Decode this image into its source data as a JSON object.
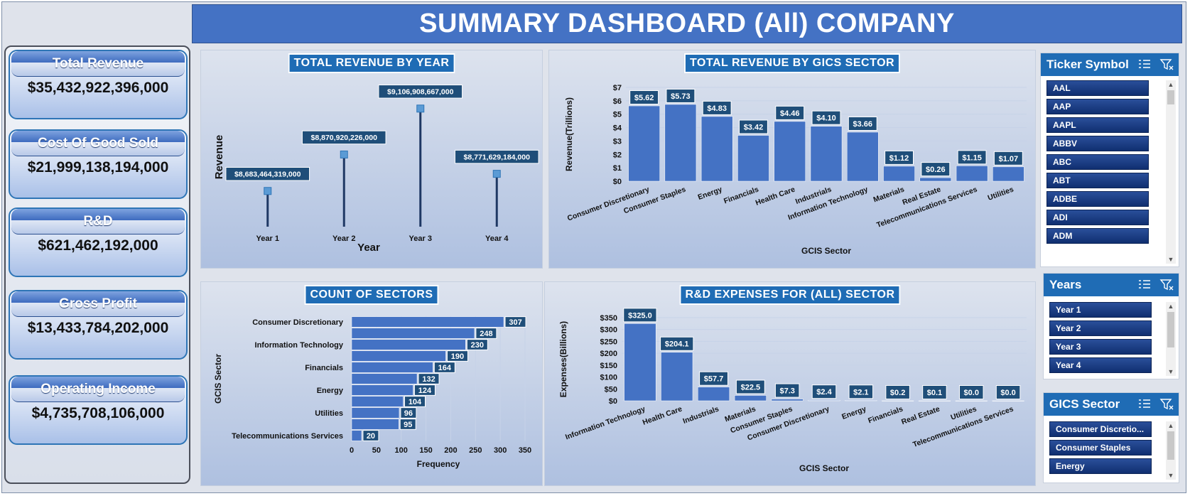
{
  "dashboard": {
    "title": "SUMMARY DASHBOARD (All) COMPANY"
  },
  "kpis": [
    {
      "label": "Total Revenue",
      "value": "$35,432,922,396,000"
    },
    {
      "label": "Cost Of Good Sold",
      "value": "$21,999,138,194,000"
    },
    {
      "label": "R&D",
      "value": "$621,462,192,000"
    },
    {
      "label": "Gross Profit",
      "value": "$13,433,784,202,000"
    },
    {
      "label": "Operating Income",
      "value": "$4,735,708,106,000"
    }
  ],
  "chart_data": [
    {
      "id": "revenue-by-year",
      "type": "line",
      "title": "TOTAL REVENUE BY YEAR",
      "xlabel": "Year",
      "ylabel": "Revenue",
      "categories": [
        "Year 1",
        "Year 2",
        "Year 3",
        "Year 4"
      ],
      "values": [
        8683464319000,
        8870920226000,
        9106908667000,
        8771629184000
      ],
      "data_labels": [
        "$8,683,464,319,000",
        "$8,870,920,226,000",
        "$9,106,908,667,000",
        "$8,771,629,184,000"
      ],
      "grid": false,
      "color": "#1f3864"
    },
    {
      "id": "revenue-by-sector",
      "type": "bar",
      "title": "TOTAL REVENUE BY GICS SECTOR",
      "xlabel": "GCIS Sector",
      "ylabel": "Revenue(Trillions)",
      "categories": [
        "Consumer Discretionary",
        "Consumer Staples",
        "Energy",
        "Financials",
        "Health Care",
        "Industrials",
        "Information Technology",
        "Materials",
        "Real Estate",
        "Telecommunications Services",
        "Utilities"
      ],
      "values": [
        5.62,
        5.73,
        4.83,
        3.42,
        4.46,
        4.1,
        3.66,
        1.12,
        0.26,
        1.15,
        1.07
      ],
      "data_labels": [
        "$5.62",
        "$5.73",
        "$4.83",
        "$3.42",
        "$4.46",
        "$4.10",
        "$3.66",
        "$1.12",
        "$0.26",
        "$1.15",
        "$1.07"
      ],
      "ylim": [
        0,
        7
      ],
      "yticks": [
        "$0",
        "$1",
        "$2",
        "$3",
        "$4",
        "$5",
        "$6",
        "$7"
      ],
      "grid": true,
      "color": "#4472c4"
    },
    {
      "id": "count-of-sectors",
      "type": "bar",
      "orientation": "horizontal",
      "title": "COUNT OF SECTORS",
      "xlabel": "Frequency",
      "ylabel": "GCIS Sector",
      "categories": [
        "Consumer Discretionary",
        "",
        "Information Technology",
        "",
        "Financials",
        "",
        "Energy",
        "",
        "Utilities",
        "",
        "Telecommunications Services"
      ],
      "values": [
        307,
        248,
        230,
        190,
        164,
        132,
        124,
        104,
        96,
        95,
        20
      ],
      "xlim": [
        0,
        350
      ],
      "xticks": [
        "0",
        "50",
        "100",
        "150",
        "200",
        "250",
        "300",
        "350"
      ],
      "grid": true,
      "color": "#4472c4"
    },
    {
      "id": "rd-expenses",
      "type": "bar",
      "title": "R&D EXPENSES FOR (ALL) SECTOR",
      "xlabel": "GCIS Sector",
      "ylabel": "Expenses(Billions)",
      "categories": [
        "Information Technology",
        "Health Care",
        "Industrials",
        "Materials",
        "Consumer Staples",
        "Consumer Discretionary",
        "Energy",
        "Financials",
        "Real Estate",
        "Utilities",
        "Telecommunications Services"
      ],
      "values": [
        325.0,
        204.1,
        57.7,
        22.5,
        7.3,
        2.4,
        2.1,
        0.2,
        0.1,
        0.0,
        0.0
      ],
      "data_labels": [
        "$325.0",
        "$204.1",
        "$57.7",
        "$22.5",
        "$7.3",
        "$2.4",
        "$2.1",
        "$0.2",
        "$0.1",
        "$0.0",
        "$0.0"
      ],
      "ylim": [
        0,
        350
      ],
      "yticks": [
        "$0",
        "$50",
        "$100",
        "$150",
        "$200",
        "$250",
        "$300",
        "$350"
      ],
      "grid": true,
      "color": "#4472c4"
    }
  ],
  "slicers": {
    "ticker": {
      "title": "Ticker Symbol",
      "items": [
        "AAL",
        "AAP",
        "AAPL",
        "ABBV",
        "ABC",
        "ABT",
        "ADBE",
        "ADI",
        "ADM"
      ]
    },
    "years": {
      "title": "Years",
      "items": [
        "Year 1",
        "Year 2",
        "Year 3",
        "Year 4"
      ]
    },
    "gics": {
      "title": "GICS Sector",
      "items": [
        "Consumer Discretio...",
        "Consumer Staples",
        "Energy"
      ]
    }
  },
  "icons": {
    "multi_select": "multi-select-icon",
    "clear_filter": "clear-filter-icon"
  }
}
